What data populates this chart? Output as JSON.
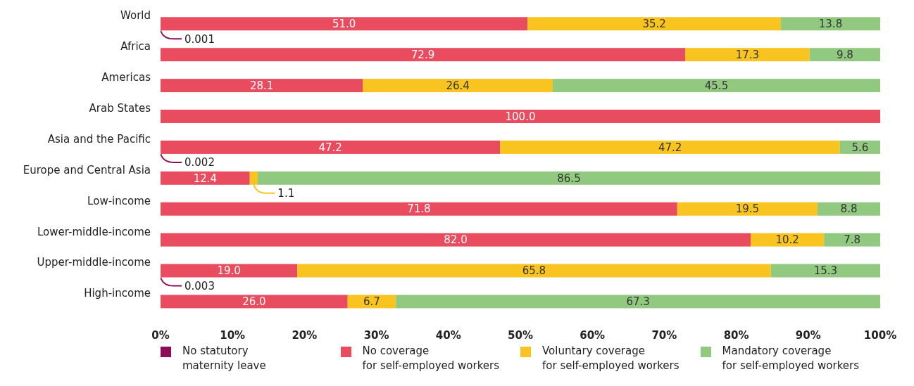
{
  "chart_data": {
    "type": "bar",
    "orientation": "horizontal",
    "stacked": true,
    "categories": [
      "World",
      "Africa",
      "Americas",
      "Arab States",
      "Asia and the Pacific",
      "Europe and Central Asia",
      "Low-income",
      "Lower-middle-income",
      "Upper-middle-income",
      "High-income"
    ],
    "series": [
      {
        "name": "No statutory\nmaternity leave",
        "color": "#8c0f55",
        "values": [
          0.001,
          0,
          0,
          0,
          0.002,
          0,
          0,
          0,
          0.003,
          0
        ],
        "value_labels": [
          "0.001",
          null,
          null,
          null,
          "0.002",
          null,
          null,
          null,
          "0.003",
          null
        ]
      },
      {
        "name": "No coverage\nfor self-employed workers",
        "color": "#e94c5f",
        "values": [
          51.0,
          72.9,
          28.1,
          100.0,
          47.2,
          12.4,
          71.8,
          82.0,
          19.0,
          26.0
        ],
        "value_labels": [
          "51.0",
          "72.9",
          "28.1",
          "100.0",
          "47.2",
          "12.4",
          "71.8",
          "82.0",
          "19.0",
          "26.0"
        ]
      },
      {
        "name": "Voluntary coverage\nfor self-employed workers",
        "color": "#f9c320",
        "values": [
          35.2,
          17.3,
          26.4,
          null,
          47.2,
          1.1,
          19.5,
          10.2,
          65.8,
          6.7
        ],
        "value_labels": [
          "35.2",
          "17.3",
          "26.4",
          null,
          "47.2",
          "1.1",
          "19.5",
          "10.2",
          "65.8",
          "6.7"
        ]
      },
      {
        "name": "Mandatory coverage\nfor self-employed workers",
        "color": "#92c981",
        "values": [
          13.8,
          9.8,
          45.5,
          null,
          5.6,
          86.5,
          8.8,
          7.8,
          15.3,
          67.3
        ],
        "value_labels": [
          "13.8",
          "9.8",
          "45.5",
          null,
          "5.6",
          "86.5",
          "8.8",
          "7.8",
          "15.3",
          "67.3"
        ]
      }
    ],
    "xlim": [
      0,
      100
    ],
    "xticks": [
      {
        "value": 0,
        "label": "0%"
      },
      {
        "value": 10,
        "label": "10%"
      },
      {
        "value": 20,
        "label": "20%"
      },
      {
        "value": 30,
        "label": "30%"
      },
      {
        "value": 40,
        "label": "40%"
      },
      {
        "value": 50,
        "label": "50%"
      },
      {
        "value": 60,
        "label": "60%"
      },
      {
        "value": 70,
        "label": "70%"
      },
      {
        "value": 80,
        "label": "80%"
      },
      {
        "value": 90,
        "label": "90%"
      },
      {
        "value": 100,
        "label": "100%"
      }
    ],
    "grid": false,
    "legend": "bottom"
  }
}
